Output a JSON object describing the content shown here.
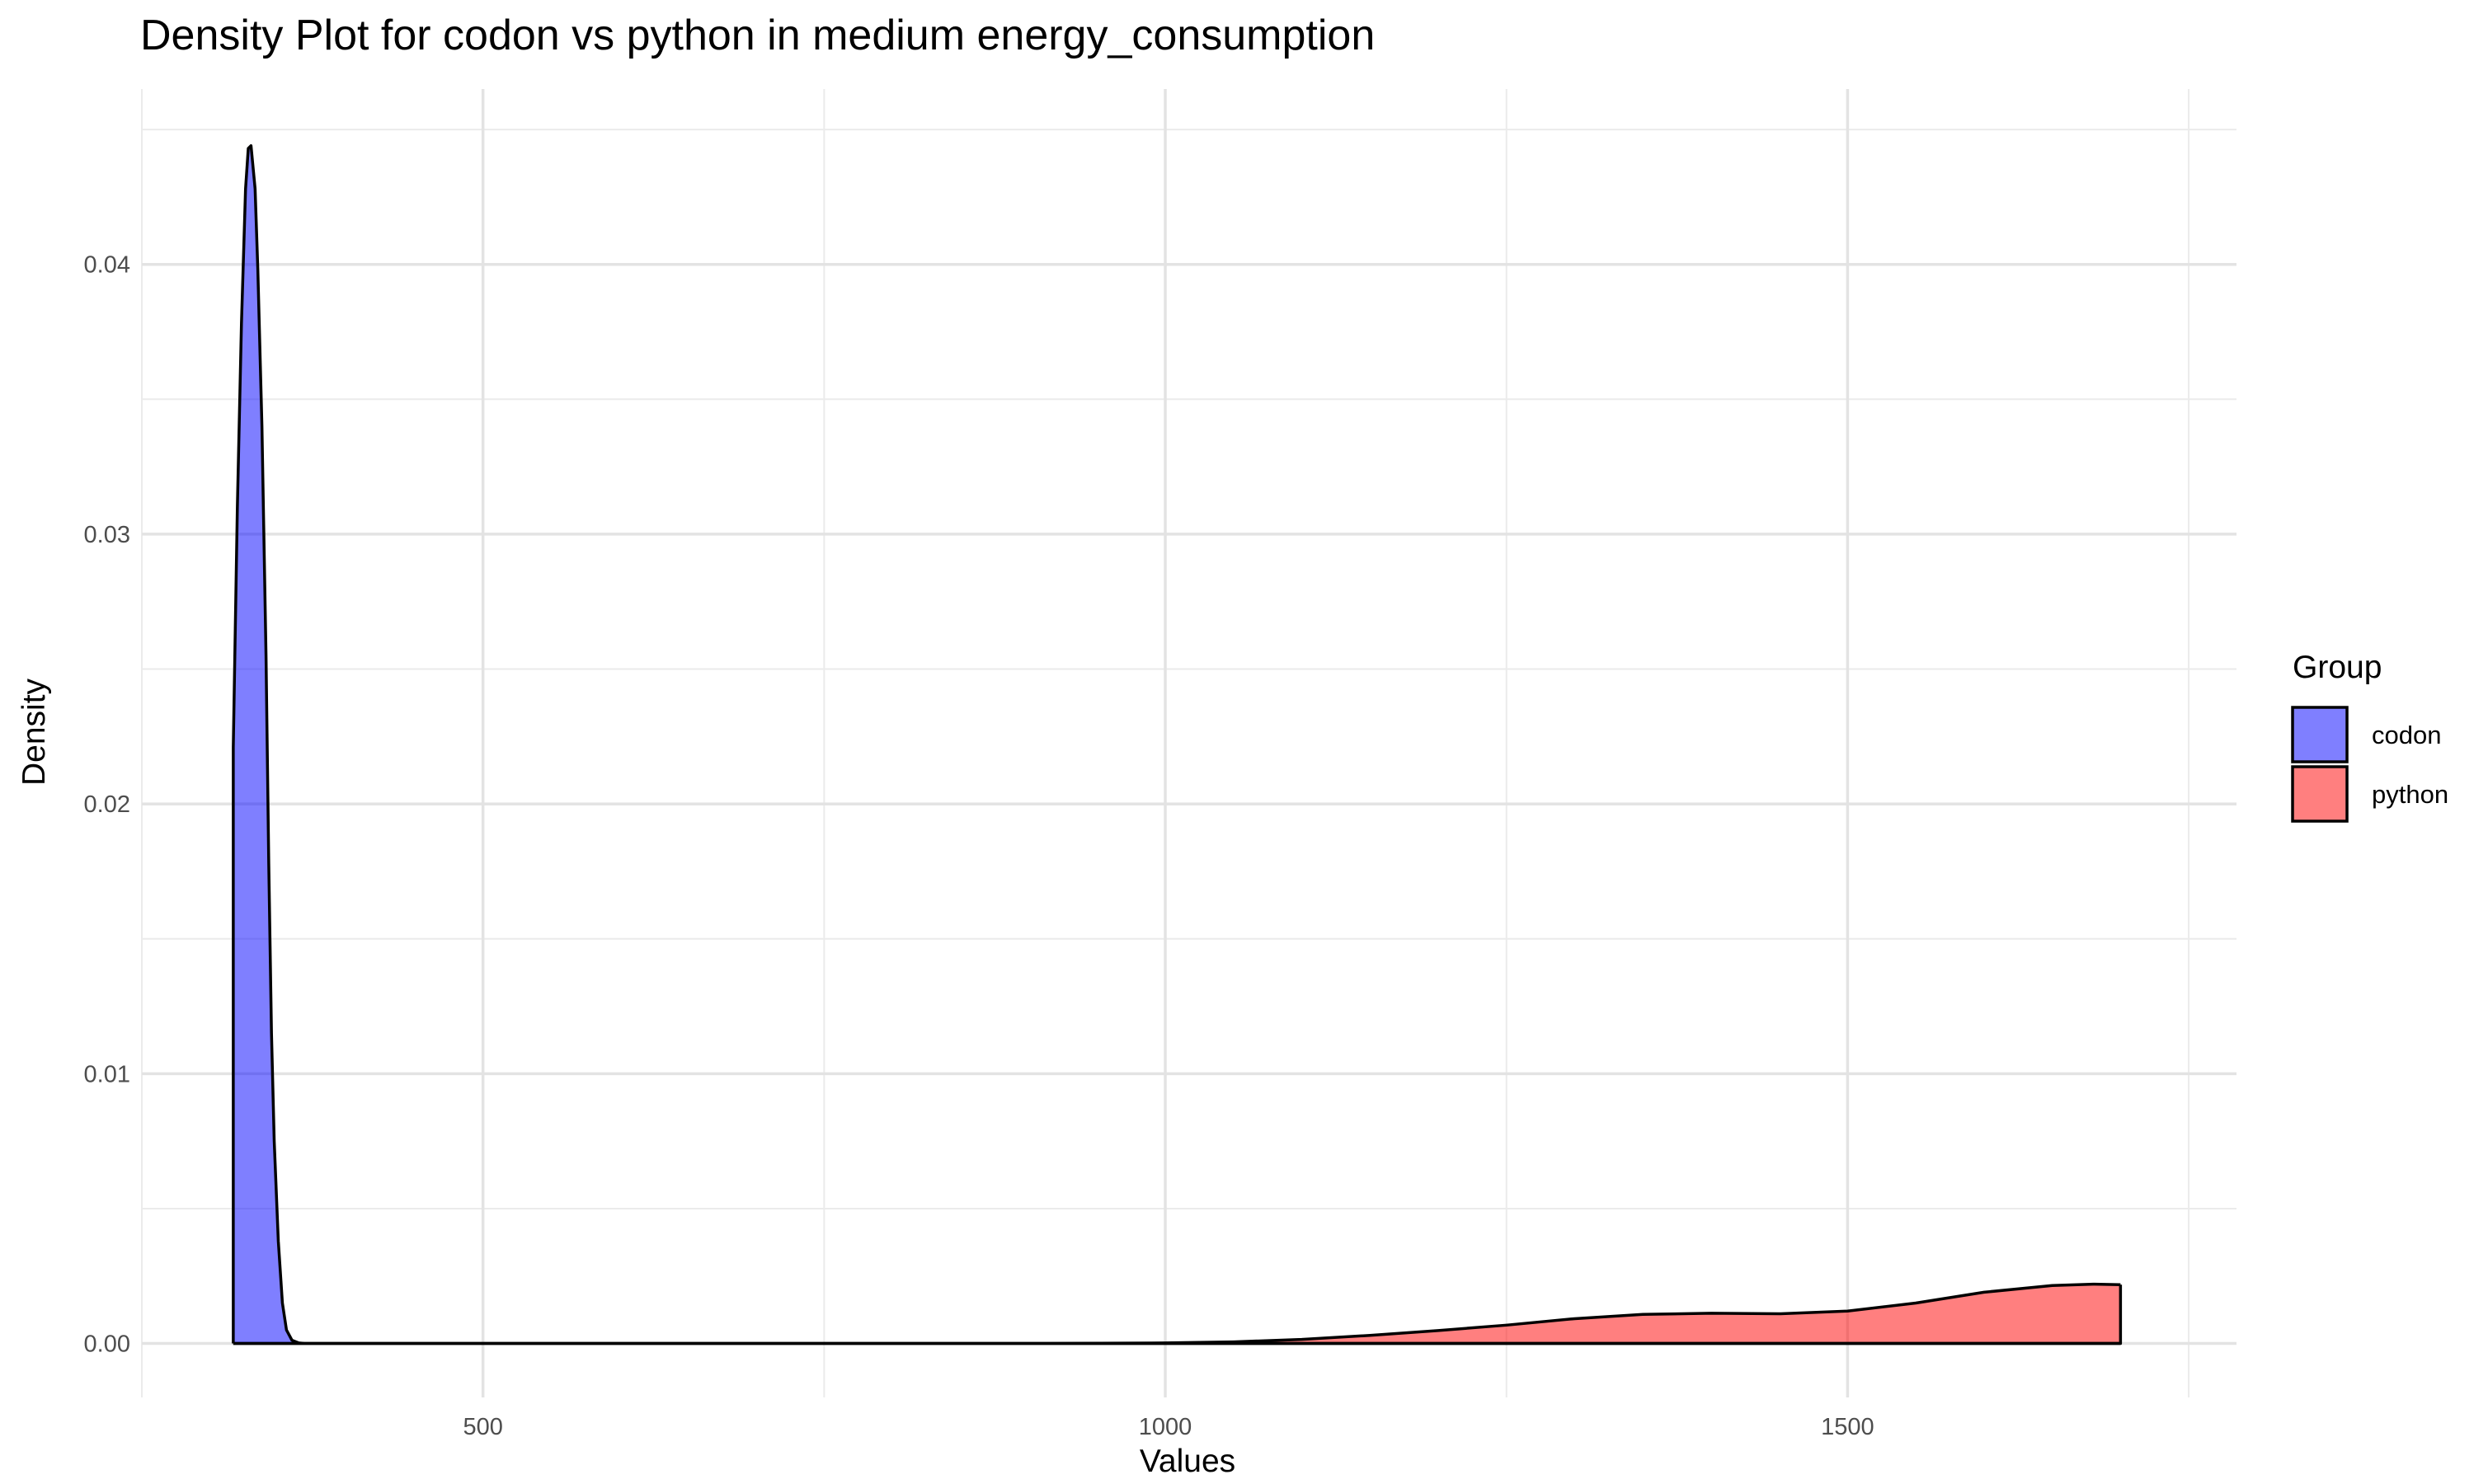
{
  "chart_data": {
    "type": "area",
    "title": "Density Plot for codon vs python in medium energy_consumption",
    "xlabel": "Values",
    "ylabel": "Density",
    "xlim": [
      250,
      1785
    ],
    "ylim": [
      -0.002,
      0.0465
    ],
    "x_ticks": [
      500,
      1000,
      1500
    ],
    "x_tick_labels": [
      "500",
      "1000",
      "1500"
    ],
    "x_minor_ticks": [
      250,
      750,
      1250,
      1750
    ],
    "y_ticks": [
      0.0,
      0.01,
      0.02,
      0.03,
      0.04
    ],
    "y_tick_labels": [
      "0.00",
      "0.01",
      "0.02",
      "0.03",
      "0.04"
    ],
    "y_minor_ticks": [
      0.005,
      0.015,
      0.025,
      0.035,
      0.045
    ],
    "grid": true,
    "legend": {
      "title": "Group",
      "position": "right"
    },
    "series": [
      {
        "name": "codon",
        "color": "#0000FF",
        "x": [
          317,
          320,
          323,
          326,
          328,
          330,
          333,
          335,
          338,
          341,
          343,
          345,
          347,
          350,
          353,
          356,
          360,
          365,
          370,
          380,
          400,
          500,
          700,
          900,
          1000,
          1100,
          1300,
          1500,
          1700
        ],
        "y": [
          0.0221,
          0.031,
          0.0378,
          0.0428,
          0.0443,
          0.0444,
          0.0428,
          0.0398,
          0.034,
          0.0255,
          0.0178,
          0.0115,
          0.0075,
          0.0038,
          0.0015,
          0.0005,
          0.00012,
          2e-05,
          0.0,
          0.0,
          0.0,
          0.0,
          0.0,
          0.0,
          0.0,
          0.0,
          0.0,
          0.0,
          0.0
        ]
      },
      {
        "name": "python",
        "color": "#FF0000",
        "x": [
          317,
          500,
          700,
          900,
          1000,
          1050,
          1100,
          1150,
          1200,
          1250,
          1300,
          1350,
          1400,
          1450,
          1500,
          1550,
          1600,
          1650,
          1680,
          1700
        ],
        "y": [
          0.0,
          0.0,
          0.0,
          0.0,
          2e-05,
          6e-05,
          0.00015,
          0.0003,
          0.00048,
          0.00068,
          0.00092,
          0.00108,
          0.00112,
          0.0011,
          0.0012,
          0.0015,
          0.0019,
          0.00215,
          0.0022,
          0.00218
        ]
      }
    ]
  }
}
